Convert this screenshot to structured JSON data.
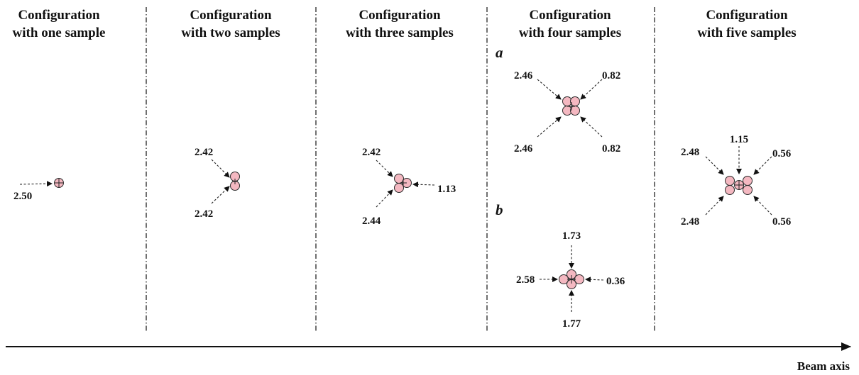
{
  "panels": [
    {
      "title_line1": "Configuration",
      "title_line2": "with one sample"
    },
    {
      "title_line1": "Configuration",
      "title_line2": "with two samples"
    },
    {
      "title_line1": "Configuration",
      "title_line2": "with three samples"
    },
    {
      "title_line1": "Configuration",
      "title_line2": "with four samples"
    },
    {
      "title_line1": "Configuration",
      "title_line2": "with five samples"
    }
  ],
  "one": {
    "left": "2.50"
  },
  "two": {
    "upper": "2.42",
    "lower": "2.42"
  },
  "three": {
    "upper": "2.42",
    "lower": "2.44",
    "right": "1.13"
  },
  "four_a": {
    "sublabel": "a",
    "ul": "2.46",
    "ur": "0.82",
    "ll": "2.46",
    "lr": "0.82"
  },
  "four_b": {
    "sublabel": "b",
    "top": "1.73",
    "left": "2.58",
    "right": "0.36",
    "bottom": "1.77"
  },
  "five": {
    "ul": "2.48",
    "top": "1.15",
    "ur": "0.56",
    "ll": "2.48",
    "lr": "0.56"
  },
  "beam_axis_label": "Beam axis"
}
